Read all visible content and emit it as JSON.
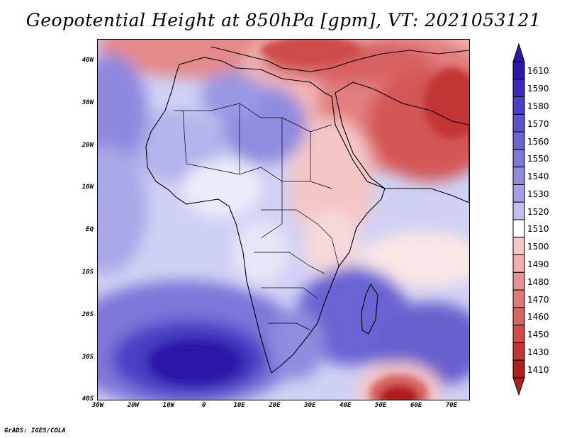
{
  "title": "Geopotential Height at 850hPa [gpm], VT: 2021053121",
  "credit": "GrADS: IGES/COLA",
  "map": {
    "lon_range": [
      -30,
      75
    ],
    "lat_range": [
      -40,
      45
    ],
    "y_axis_labels": [
      "40N",
      "30N",
      "20N",
      "10N",
      "EQ",
      "10S",
      "20S",
      "30S",
      "40S"
    ],
    "x_axis_labels": [
      "30W",
      "20W",
      "10W",
      "0",
      "10E",
      "20E",
      "30E",
      "40E",
      "50E",
      "60E",
      "70E"
    ],
    "features": {
      "high_low": "Low heights (red) over Arabia, Middle East and southern Indian Ocean; high heights (blue) over South Atlantic and North Africa"
    }
  },
  "colorbar": {
    "labels": [
      "1610",
      "1590",
      "1580",
      "1570",
      "1560",
      "1550",
      "1540",
      "1530",
      "1520",
      "1510",
      "1500",
      "1490",
      "1480",
      "1470",
      "1460",
      "1450",
      "1430",
      "1410"
    ],
    "colors": [
      "#2b17a8",
      "#3a2bba",
      "#4a3fc6",
      "#5a52cc",
      "#6b64d3",
      "#7d77d9",
      "#8f8bdf",
      "#a3a1e6",
      "#c0c0ef",
      "#ffffff",
      "#f6c9c9",
      "#f0aeae",
      "#e89393",
      "#e07a7a",
      "#d86464",
      "#cf4c4c",
      "#c33535",
      "#b11e1e"
    ]
  }
}
